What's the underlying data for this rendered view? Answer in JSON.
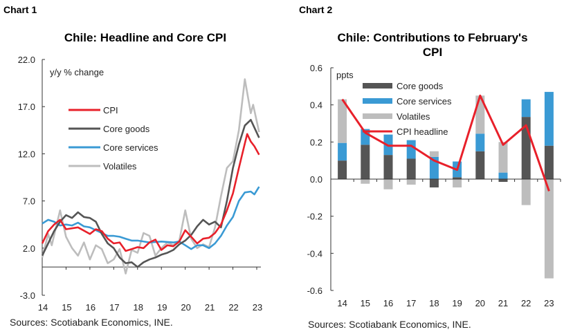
{
  "chart1": {
    "label": "Chart 1",
    "title": "Chile: Headline and Core CPI",
    "source": "Sources: Scotiabank Economics, INE.",
    "chart_data": {
      "type": "line",
      "title": "Chile: Headline and Core CPI",
      "ylabel": "y/y % change",
      "ylim": [
        -3.0,
        22.0
      ],
      "yticks": [
        "22.0",
        "17.0",
        "12.0",
        "7.0",
        "2.0",
        "-3.0"
      ],
      "ytick_values": [
        22,
        17,
        12,
        7,
        2,
        -3
      ],
      "xlim": [
        2014,
        2023.2
      ],
      "xticks": [
        "14",
        "15",
        "16",
        "17",
        "18",
        "19",
        "20",
        "21",
        "22",
        "23"
      ],
      "xtick_values": [
        2014,
        2015,
        2016,
        2017,
        2018,
        2019,
        2020,
        2021,
        2022,
        2023
      ],
      "legend_position": "upper-left",
      "grid": false,
      "series": [
        {
          "name": "CPI",
          "color": "#e8202a",
          "x": [
            2014,
            2014.25,
            2014.5,
            2014.75,
            2015,
            2015.5,
            2016,
            2016.25,
            2016.5,
            2016.75,
            2017,
            2017.25,
            2017.5,
            2017.75,
            2018,
            2018.25,
            2018.5,
            2018.75,
            2019,
            2019.25,
            2019.5,
            2019.75,
            2020,
            2020.25,
            2020.5,
            2020.75,
            2021,
            2021.25,
            2021.5,
            2021.75,
            2022,
            2022.25,
            2022.5,
            2022.6,
            2022.75,
            2022.9,
            2023.1
          ],
          "y": [
            2.5,
            3.8,
            4.5,
            5.0,
            4.0,
            4.2,
            3.5,
            4.0,
            3.8,
            3.0,
            2.5,
            2.6,
            1.7,
            1.9,
            2.1,
            2.0,
            2.6,
            2.9,
            1.8,
            2.3,
            2.2,
            2.7,
            3.9,
            3.2,
            2.5,
            3.0,
            3.1,
            3.6,
            4.5,
            6.0,
            7.8,
            10.5,
            13.1,
            14.1,
            13.3,
            12.8,
            11.9
          ]
        },
        {
          "name": "Core goods",
          "color": "#555555",
          "x": [
            2014,
            2014.25,
            2014.5,
            2014.75,
            2015,
            2015.25,
            2015.5,
            2015.75,
            2016,
            2016.25,
            2016.5,
            2016.75,
            2017,
            2017.25,
            2017.5,
            2017.75,
            2018,
            2018.25,
            2018.5,
            2018.75,
            2019,
            2019.25,
            2019.5,
            2019.75,
            2020,
            2020.25,
            2020.5,
            2020.75,
            2021,
            2021.25,
            2021.5,
            2021.75,
            2022,
            2022.25,
            2022.5,
            2022.75,
            2023.1
          ],
          "y": [
            1.2,
            2.5,
            3.8,
            4.8,
            5.5,
            5.2,
            5.8,
            5.3,
            5.2,
            4.8,
            3.5,
            2.5,
            2.0,
            1.0,
            0.4,
            0.5,
            0.0,
            0.5,
            0.8,
            1.0,
            1.3,
            1.5,
            1.8,
            2.4,
            2.8,
            3.4,
            4.3,
            5.0,
            4.5,
            4.8,
            4.2,
            7.0,
            10.5,
            13.0,
            15.0,
            15.6,
            13.7
          ]
        },
        {
          "name": "Core services",
          "color": "#3a9ad4",
          "x": [
            2014,
            2014.25,
            2014.5,
            2014.75,
            2015,
            2015.25,
            2015.5,
            2015.75,
            2016,
            2016.5,
            2016.75,
            2017,
            2017.25,
            2017.5,
            2017.75,
            2018,
            2018.5,
            2019,
            2019.5,
            2019.75,
            2020,
            2020.25,
            2020.5,
            2020.75,
            2021,
            2021.25,
            2021.5,
            2021.75,
            2022,
            2022.25,
            2022.5,
            2022.75,
            2022.9,
            2023.1
          ],
          "y": [
            4.6,
            5.0,
            4.8,
            4.4,
            4.5,
            4.4,
            4.7,
            4.3,
            4.2,
            3.6,
            3.3,
            3.3,
            3.2,
            3.0,
            2.8,
            2.8,
            2.6,
            2.7,
            2.6,
            2.7,
            2.3,
            1.9,
            2.3,
            2.3,
            2.0,
            2.5,
            3.3,
            4.4,
            5.3,
            7.0,
            7.9,
            8.0,
            7.7,
            8.5
          ]
        },
        {
          "name": "Volatiles",
          "color": "#bdbdbd",
          "x": [
            2014,
            2014.25,
            2014.4,
            2014.75,
            2015,
            2015.25,
            2015.5,
            2015.75,
            2016,
            2016.25,
            2016.5,
            2016.75,
            2017,
            2017.25,
            2017.5,
            2017.75,
            2018,
            2018.25,
            2018.5,
            2018.75,
            2019,
            2019.25,
            2019.5,
            2019.75,
            2020,
            2020.25,
            2020.5,
            2020.75,
            2021,
            2021.25,
            2021.5,
            2021.75,
            2022,
            2022.25,
            2022.5,
            2022.75,
            2022.85,
            2023.1
          ],
          "y": [
            1.0,
            3.5,
            2.3,
            6.0,
            3.2,
            2.0,
            1.2,
            2.6,
            0.8,
            2.3,
            1.9,
            0.4,
            0.8,
            1.9,
            -0.7,
            1.8,
            1.5,
            3.6,
            3.3,
            1.2,
            2.0,
            2.6,
            2.3,
            2.8,
            6.0,
            3.0,
            2.0,
            2.4,
            2.1,
            4.2,
            7.5,
            10.5,
            11.2,
            14.5,
            19.9,
            16.3,
            17.2,
            14.3
          ]
        }
      ]
    }
  },
  "chart2": {
    "label": "Chart 2",
    "title_line1": "Chile: Contributions to February's",
    "title_line2": "CPI",
    "source": "Sources: Scotiabank Economics, INE.",
    "chart_data": {
      "type": "bar",
      "stacked": true,
      "title": "Chile: Contributions to February's CPI",
      "ylabel": "ppts",
      "ylim": [
        -0.6,
        0.6
      ],
      "yticks": [
        "0.6",
        "0.4",
        "0.2",
        "0.0",
        "-0.2",
        "-0.4",
        "-0.6"
      ],
      "ytick_values": [
        0.6,
        0.4,
        0.2,
        0,
        -0.2,
        -0.4,
        -0.6
      ],
      "categories": [
        "14",
        "15",
        "16",
        "17",
        "18",
        "19",
        "20",
        "21",
        "22",
        "23"
      ],
      "legend_position": "top",
      "grid": false,
      "series": [
        {
          "name": "Core goods",
          "color": "#555555",
          "values": [
            0.1,
            0.185,
            0.13,
            0.11,
            -0.045,
            0.01,
            0.15,
            -0.015,
            0.335,
            0.18
          ]
        },
        {
          "name": "Core services",
          "color": "#3a9ad4",
          "values": [
            0.095,
            0.085,
            0.11,
            0.1,
            0.12,
            0.085,
            0.095,
            0.035,
            0.095,
            0.29
          ]
        },
        {
          "name": "Volatiles",
          "color": "#bdbdbd",
          "values": [
            0.235,
            -0.025,
            -0.055,
            -0.03,
            0.03,
            -0.045,
            0.205,
            0.165,
            -0.14,
            -0.535
          ]
        }
      ],
      "line": {
        "name": "CPI headline",
        "color": "#e8202a",
        "values": [
          0.43,
          0.25,
          0.18,
          0.18,
          0.1,
          0.05,
          0.45,
          0.185,
          0.29,
          -0.065
        ]
      }
    }
  }
}
